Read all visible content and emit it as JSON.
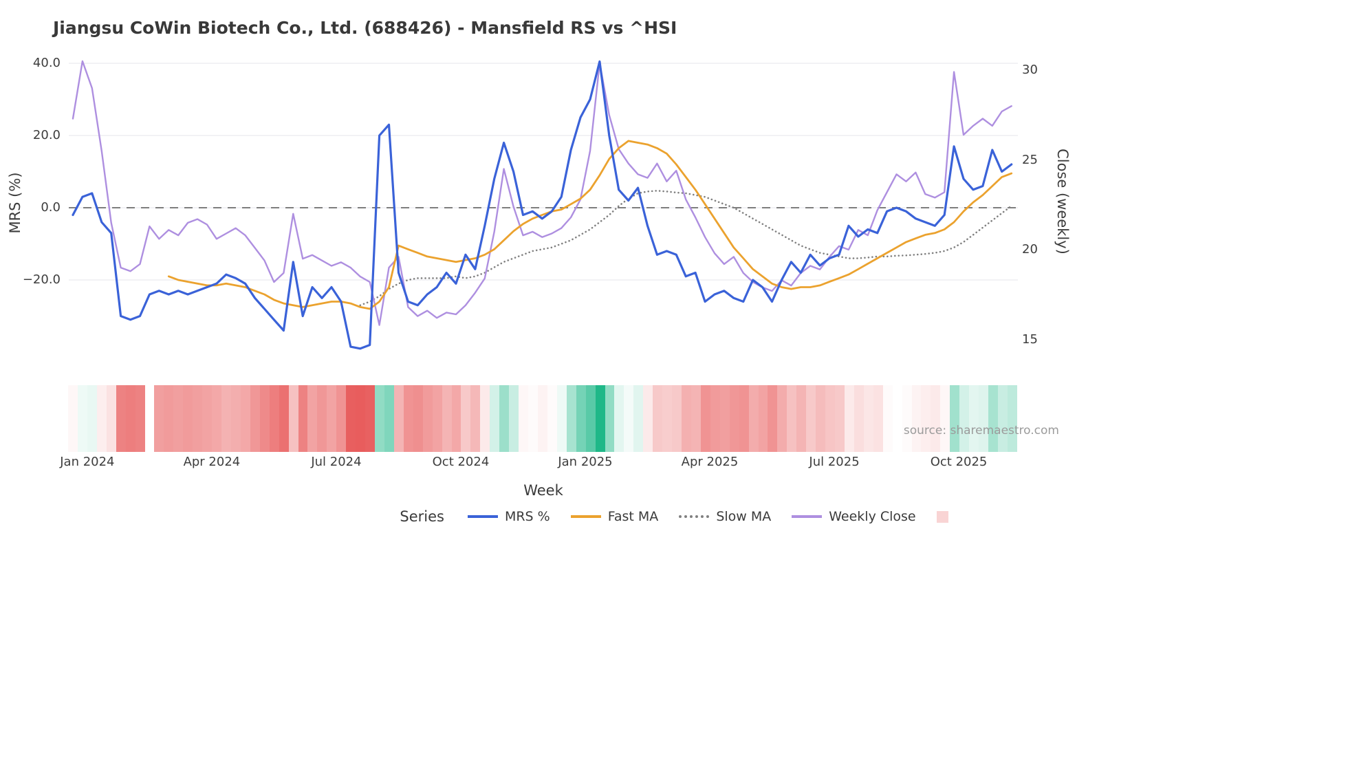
{
  "title": "Jiangsu CoWin Biotech Co., Ltd. (688426) - Mansfield RS vs ^HSI",
  "source_watermark": "source: sharemaestro.com",
  "legend": {
    "title": "Series",
    "items": [
      {
        "label": "MRS %",
        "swatch": "line",
        "color": "#3a62d8"
      },
      {
        "label": "Fast MA",
        "swatch": "line",
        "color": "#eba22e"
      },
      {
        "label": "Slow MA",
        "swatch": "dotted-line",
        "color": "#808080"
      },
      {
        "label": "Weekly Close",
        "swatch": "line",
        "color": "#ae8fe0"
      },
      {
        "label": "",
        "swatch": "square",
        "color": "#f9d4d4"
      }
    ]
  },
  "chart_data": {
    "type": "line",
    "title": "Jiangsu CoWin Biotech Co., Ltd. (688426) - Mansfield RS vs ^HSI",
    "x_axis": {
      "label": "Week",
      "n_points": 99,
      "tick_labels": [
        "Jan 2024",
        "Apr 2024",
        "Jul 2024",
        "Oct 2024",
        "Jan 2025",
        "Apr 2025",
        "Jul 2025",
        "Oct 2025"
      ],
      "tick_positions": [
        1.5,
        14.5,
        27.5,
        40.5,
        53.5,
        66.5,
        79.5,
        92.5
      ]
    },
    "y_left_axis": {
      "label": "MRS (%)",
      "tick_values": [
        40,
        20,
        0,
        -20
      ],
      "tick_labels": [
        "40.0",
        "20.0",
        "0.0",
        "−20.0"
      ],
      "range": [
        -44,
        46
      ]
    },
    "y_right_axis": {
      "label": "Close (weekly)",
      "tick_values": [
        30,
        25,
        20,
        15
      ],
      "tick_labels": [
        "30",
        "25",
        "20",
        "15"
      ],
      "range": [
        14.5,
        31.3
      ]
    },
    "zero_reference_line": {
      "value": 0,
      "style": "dashed",
      "color": "#7e7e7e"
    },
    "grid_color": "#e9e9ef",
    "series": [
      {
        "name": "MRS %",
        "axis": "left",
        "color": "#3a62d8",
        "width": 3.2,
        "dash": null,
        "values": [
          -2,
          3,
          4,
          -4,
          -7,
          -30,
          -31,
          -30,
          -24,
          -23,
          -24,
          -23,
          -24,
          -23,
          -22,
          -21,
          -18.5,
          -19.5,
          -21,
          -25,
          -28,
          -31,
          -34,
          -15,
          -30,
          -22,
          -25,
          -22,
          -26,
          -38.5,
          -39,
          -38,
          20,
          23,
          -18,
          -26,
          -27,
          -24,
          -22,
          -18,
          -21,
          -13,
          -17,
          -5,
          8,
          18,
          10,
          -2,
          -1,
          -3,
          -1,
          3,
          16,
          25,
          30,
          40.5,
          20,
          5,
          2,
          5.5,
          -5,
          -13,
          -12,
          -13,
          -19,
          -18,
          -26,
          -24,
          -23,
          -25,
          -26,
          -20,
          -22,
          -26,
          -20,
          -15,
          -18,
          -13,
          -16,
          -14,
          -13,
          -5,
          -8,
          -6,
          -7,
          -1,
          0,
          -1,
          -3,
          -4,
          -5,
          -2,
          17,
          8,
          5,
          6,
          16,
          10,
          12
        ]
      },
      {
        "name": "Fast MA",
        "axis": "left",
        "color": "#eba22e",
        "width": 2.8,
        "dash": null,
        "values": [
          null,
          null,
          null,
          null,
          null,
          null,
          null,
          null,
          null,
          null,
          -19,
          -20,
          -20.5,
          -21,
          -21.5,
          -21.5,
          -21,
          -21.5,
          -22,
          -23,
          -24,
          -25.5,
          -26.5,
          -27,
          -27.5,
          -27,
          -26.5,
          -26,
          -26,
          -26.5,
          -27.5,
          -28,
          -26,
          -22,
          -10.5,
          -11.5,
          -12.5,
          -13.5,
          -14,
          -14.5,
          -15,
          -14.5,
          -14,
          -13,
          -11.5,
          -9,
          -6.5,
          -4.5,
          -3,
          -2,
          -1,
          -0.5,
          1,
          2.5,
          5,
          9,
          13.5,
          16.5,
          18.5,
          18,
          17.5,
          16.5,
          15,
          12,
          8.5,
          5,
          1,
          -3,
          -7,
          -11,
          -14,
          -17,
          -19,
          -21,
          -22,
          -22.5,
          -22,
          -22,
          -21.5,
          -20.5,
          -19.5,
          -18.5,
          -17,
          -15.5,
          -14,
          -12.5,
          -11,
          -9.5,
          -8.5,
          -7.5,
          -7,
          -6,
          -4,
          -1,
          1.5,
          3.5,
          6,
          8.5,
          9.5
        ]
      },
      {
        "name": "Slow MA",
        "axis": "left",
        "color": "#808080",
        "width": 2.6,
        "dash": "0.1 5.4",
        "values": [
          null,
          null,
          null,
          null,
          null,
          null,
          null,
          null,
          null,
          null,
          null,
          null,
          null,
          null,
          null,
          null,
          null,
          null,
          null,
          null,
          null,
          null,
          null,
          null,
          null,
          null,
          null,
          null,
          null,
          null,
          -27,
          -26,
          -24.5,
          -22.5,
          -21,
          -20,
          -19.5,
          -19.5,
          -19.5,
          -19.5,
          -19,
          -19.5,
          -19,
          -18,
          -16.5,
          -15,
          -14,
          -13,
          -12,
          -11.5,
          -11,
          -10,
          -9,
          -7.5,
          -6,
          -4,
          -2,
          0.5,
          2.5,
          4,
          4.5,
          4.7,
          4.5,
          4.2,
          4,
          3.5,
          3,
          2,
          1,
          0,
          -1.5,
          -3,
          -4.5,
          -6,
          -7.5,
          -9,
          -10.5,
          -11.5,
          -12.5,
          -13,
          -13.5,
          -14,
          -14,
          -13.8,
          -13.5,
          -13.5,
          -13.3,
          -13.2,
          -13,
          -12.8,
          -12.5,
          -12,
          -11,
          -9.5,
          -7.5,
          -5.5,
          -3.5,
          -1.5,
          0.5
        ]
      },
      {
        "name": "Weekly Close",
        "axis": "right",
        "color": "#ae8fe0",
        "width": 2.4,
        "dash": null,
        "values": [
          27.3,
          30.5,
          29.0,
          25.5,
          21.5,
          19.0,
          18.8,
          19.2,
          21.3,
          20.6,
          21.1,
          20.8,
          21.5,
          21.7,
          21.4,
          20.6,
          20.9,
          21.2,
          20.8,
          20.1,
          19.4,
          18.2,
          18.7,
          22.0,
          19.5,
          19.7,
          19.4,
          19.1,
          19.3,
          19.0,
          18.5,
          18.2,
          15.8,
          19.0,
          19.6,
          16.8,
          16.3,
          16.6,
          16.2,
          16.5,
          16.4,
          16.9,
          17.6,
          18.4,
          21.0,
          24.5,
          22.4,
          20.8,
          21.0,
          20.7,
          20.9,
          21.2,
          21.8,
          22.8,
          25.5,
          30.4,
          27.5,
          25.6,
          24.8,
          24.2,
          24.0,
          24.8,
          23.8,
          24.4,
          22.8,
          21.8,
          20.7,
          19.8,
          19.2,
          19.6,
          18.7,
          18.2,
          17.9,
          17.7,
          18.3,
          18.0,
          18.7,
          19.1,
          18.9,
          19.6,
          20.2,
          20.0,
          21.1,
          20.8,
          22.2,
          23.2,
          24.2,
          23.8,
          24.3,
          23.1,
          22.9,
          23.2,
          29.9,
          26.4,
          26.9,
          27.3,
          26.9,
          27.7,
          28.0
        ]
      }
    ],
    "heatmap_strip": {
      "description": "weekly MRS % mapped to a red-white-green diverging scale",
      "values_from_series": "MRS %",
      "gap_indices": [
        8
      ],
      "negative_color": "#e65050",
      "positive_color": "#17b584",
      "max_abs_value": 42
    }
  }
}
